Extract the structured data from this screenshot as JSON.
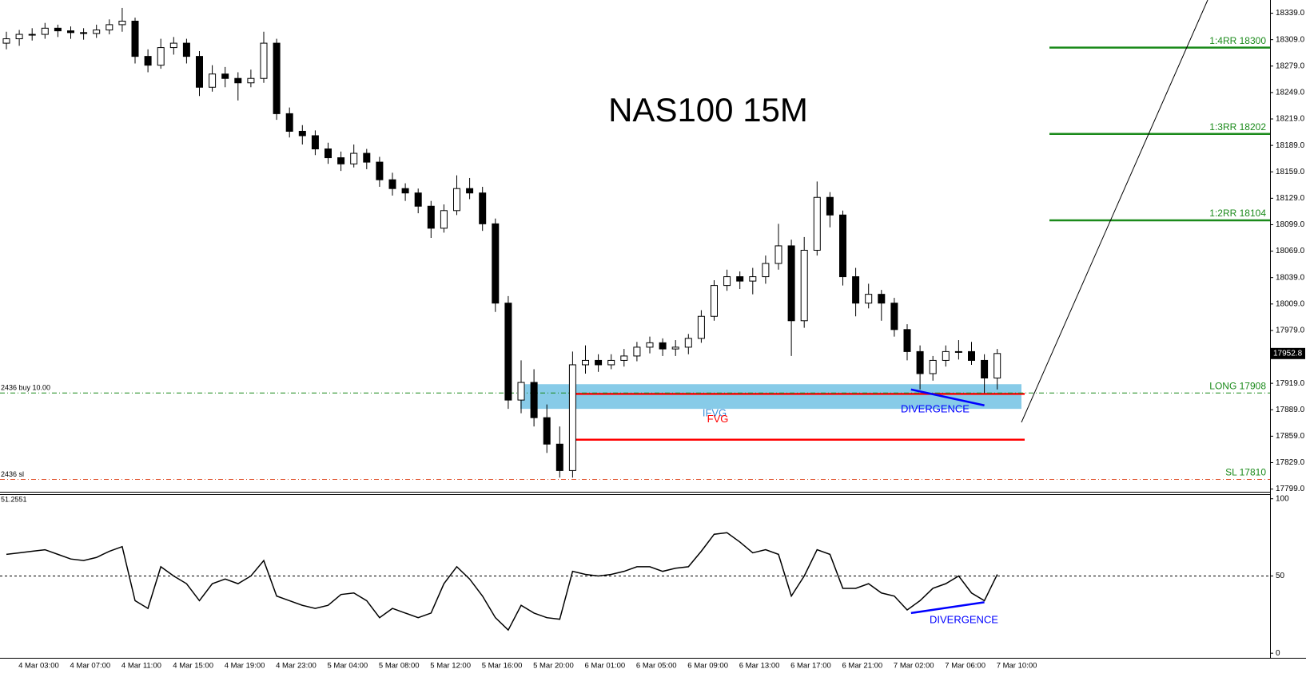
{
  "chart_data": [
    {
      "type": "candlestick",
      "title": "NAS100 15M",
      "categories": [
        null,
        "4 Mar 03:00",
        null,
        null,
        null,
        "4 Mar 07:00",
        null,
        null,
        null,
        "4 Mar 11:00",
        null,
        null,
        null,
        "4 Mar 15:00",
        null,
        null,
        null,
        "4 Mar 19:00",
        null,
        null,
        null,
        "4 Mar 23:00",
        null,
        null,
        null,
        "5 Mar 04:00",
        null,
        null,
        null,
        "5 Mar 08:00",
        null,
        null,
        null,
        "5 Mar 12:00",
        null,
        null,
        null,
        "5 Mar 16:00",
        null,
        null,
        null,
        "5 Mar 20:00",
        null,
        null,
        null,
        "6 Mar 01:00",
        null,
        null,
        null,
        "6 Mar 05:00",
        null,
        null,
        null,
        "6 Mar 09:00",
        null,
        null,
        null,
        "6 Mar 13:00",
        null,
        null,
        null,
        "6 Mar 17:00",
        null,
        null,
        null,
        "6 Mar 21:00",
        null,
        null,
        null,
        "7 Mar 02:00",
        null,
        null,
        null,
        "7 Mar 06:00",
        null,
        null,
        null,
        "7 Mar 10:00"
      ],
      "open": [
        18305,
        18310,
        18315,
        18315,
        18322,
        18319,
        18317,
        18316,
        18320,
        18326,
        18330,
        18290,
        18280,
        18300,
        18305,
        18290,
        18255,
        18270,
        18265,
        18260,
        18265,
        18305,
        18225,
        18205,
        18200,
        18185,
        18175,
        18168,
        18180,
        18170,
        18150,
        18140,
        18135,
        18120,
        18095,
        18115,
        18140,
        18135,
        18100,
        18010,
        17900,
        17920,
        17880,
        17850,
        17820,
        17940,
        17945,
        17940,
        17945,
        17950,
        17960,
        17965,
        17958,
        17960,
        17970,
        17995,
        18030,
        18040,
        18035,
        18040,
        18055,
        18075,
        17990,
        18070,
        18130,
        18110,
        18040,
        18010,
        18020,
        18010,
        17980,
        17955,
        17930,
        17945,
        17955,
        17955,
        17945,
        17925
      ],
      "high": [
        18318,
        18320,
        18322,
        18328,
        18326,
        18324,
        18322,
        18326,
        18332,
        18345,
        18334,
        18298,
        18310,
        18312,
        18310,
        18296,
        18280,
        18278,
        18272,
        18275,
        18318,
        18310,
        18232,
        18212,
        18206,
        18192,
        18182,
        18190,
        18185,
        18176,
        18158,
        18146,
        18140,
        18126,
        18122,
        18155,
        18152,
        18142,
        18106,
        18018,
        17945,
        17935,
        17895,
        17870,
        17955,
        17962,
        17952,
        17952,
        17958,
        17966,
        17972,
        17970,
        17968,
        17975,
        18002,
        18036,
        18048,
        18046,
        18050,
        18064,
        18100,
        18082,
        18085,
        18148,
        18136,
        18115,
        18050,
        18032,
        18025,
        18016,
        17986,
        17962,
        17950,
        17962,
        17968,
        17966,
        17952,
        17958
      ],
      "low": [
        18298,
        18302,
        18308,
        18310,
        18312,
        18310,
        18309,
        18311,
        18315,
        18318,
        18282,
        18272,
        18276,
        18292,
        18282,
        18245,
        18250,
        18255,
        18240,
        18255,
        18260,
        18218,
        18198,
        18190,
        18178,
        18168,
        18160,
        18164,
        18162,
        18142,
        18132,
        18126,
        18112,
        18084,
        18090,
        18110,
        18128,
        18092,
        18000,
        17890,
        17885,
        17870,
        17840,
        17812,
        17812,
        17930,
        17932,
        17935,
        17938,
        17944,
        17953,
        17950,
        17950,
        17952,
        17965,
        17990,
        18024,
        18026,
        18020,
        18032,
        18048,
        17950,
        17982,
        18064,
        18096,
        18030,
        17995,
        18004,
        17990,
        17972,
        17945,
        17912,
        17922,
        17938,
        17946,
        17940,
        17908,
        17912
      ],
      "close": [
        18310,
        18315,
        18315,
        18322,
        18319,
        18317,
        18316,
        18320,
        18326,
        18330,
        18290,
        18280,
        18300,
        18305,
        18290,
        18255,
        18270,
        18265,
        18260,
        18265,
        18305,
        18225,
        18205,
        18200,
        18185,
        18175,
        18168,
        18180,
        18170,
        18150,
        18140,
        18135,
        18120,
        18095,
        18115,
        18140,
        18135,
        18100,
        18010,
        17900,
        17920,
        17880,
        17850,
        17820,
        17940,
        17945,
        17940,
        17945,
        17950,
        17960,
        17965,
        17958,
        17960,
        17970,
        17995,
        18030,
        18040,
        18035,
        18040,
        18055,
        18075,
        17990,
        18070,
        18130,
        18110,
        18040,
        18010,
        18020,
        18010,
        17980,
        17955,
        17930,
        17945,
        17955,
        17955,
        17945,
        17925,
        17952.8
      ],
      "ylim": [
        17795,
        18354
      ],
      "yticks": [
        {
          "value": 18339,
          "label": "18339.0"
        },
        {
          "value": 18309,
          "label": "18309.0"
        },
        {
          "value": 18279,
          "label": "18279.0"
        },
        {
          "value": 18249,
          "label": "18249.0"
        },
        {
          "value": 18219,
          "label": "18219.0"
        },
        {
          "value": 18189,
          "label": "18189.0"
        },
        {
          "value": 18159,
          "label": "18159.0"
        },
        {
          "value": 18129,
          "label": "18129.0"
        },
        {
          "value": 18099,
          "label": "18099.0"
        },
        {
          "value": 18069,
          "label": "18069.0"
        },
        {
          "value": 18039,
          "label": "18039.0"
        },
        {
          "value": 18009,
          "label": "18009.0"
        },
        {
          "value": 17979,
          "label": "17979.0"
        },
        {
          "value": 17919,
          "label": "17919.0"
        },
        {
          "value": 17889,
          "label": "17889.0"
        },
        {
          "value": 17859,
          "label": "17859.0"
        },
        {
          "value": 17829,
          "label": "17829.0"
        },
        {
          "value": 17799,
          "label": "17799.0"
        }
      ],
      "current_price": 17952.8,
      "levels": [
        {
          "label": "1:4RR 18300",
          "value": 18300,
          "color": "#1a8a1a"
        },
        {
          "label": "1:3RR 18202",
          "value": 18202,
          "color": "#1a8a1a"
        },
        {
          "label": "1:2RR 18104",
          "value": 18104,
          "color": "#1a8a1a"
        }
      ],
      "long": {
        "label": "LONG 17908",
        "value": 17908,
        "order_label": "2436 buy 10.00",
        "color": "#1a8a1a"
      },
      "sl": {
        "label": "SL 17810",
        "value": 17810,
        "order_label": "2436 sl",
        "color": "#e0502a"
      },
      "zone": {
        "label": "IFVG",
        "top": 17918,
        "bottom": 17890,
        "color": "#87cbe8"
      },
      "fvg": {
        "label": "FVG",
        "top": 17907,
        "bottom": 17855,
        "color": "#ff0000"
      },
      "divergence": {
        "label": "DIVERGENCE",
        "values": [
          17912,
          17894
        ],
        "color": "#0000ff"
      }
    },
    {
      "type": "line",
      "last_value": 51.2551,
      "values": [
        64,
        65,
        66,
        67,
        64,
        61,
        60,
        62,
        66,
        69,
        34,
        29,
        56,
        50,
        45,
        34,
        45,
        48,
        45,
        50,
        60,
        37,
        34,
        31,
        29,
        31,
        38,
        39,
        34,
        23,
        29,
        26,
        23,
        26,
        45,
        56,
        48,
        37,
        23,
        15,
        31,
        26,
        23,
        22,
        53,
        51,
        50,
        51,
        53,
        56,
        56,
        53,
        55,
        56,
        66,
        77,
        78,
        72,
        65,
        67,
        64,
        37,
        50,
        67,
        64,
        42,
        42,
        45,
        39,
        37,
        28,
        34,
        42,
        45,
        50,
        39,
        34,
        51
      ],
      "ylim": [
        -3,
        104
      ],
      "yticks": [
        0,
        50,
        100
      ],
      "level": 50,
      "divergence": {
        "label": "DIVERGENCE",
        "values": [
          26,
          33
        ],
        "color": "#0000ff"
      }
    }
  ]
}
